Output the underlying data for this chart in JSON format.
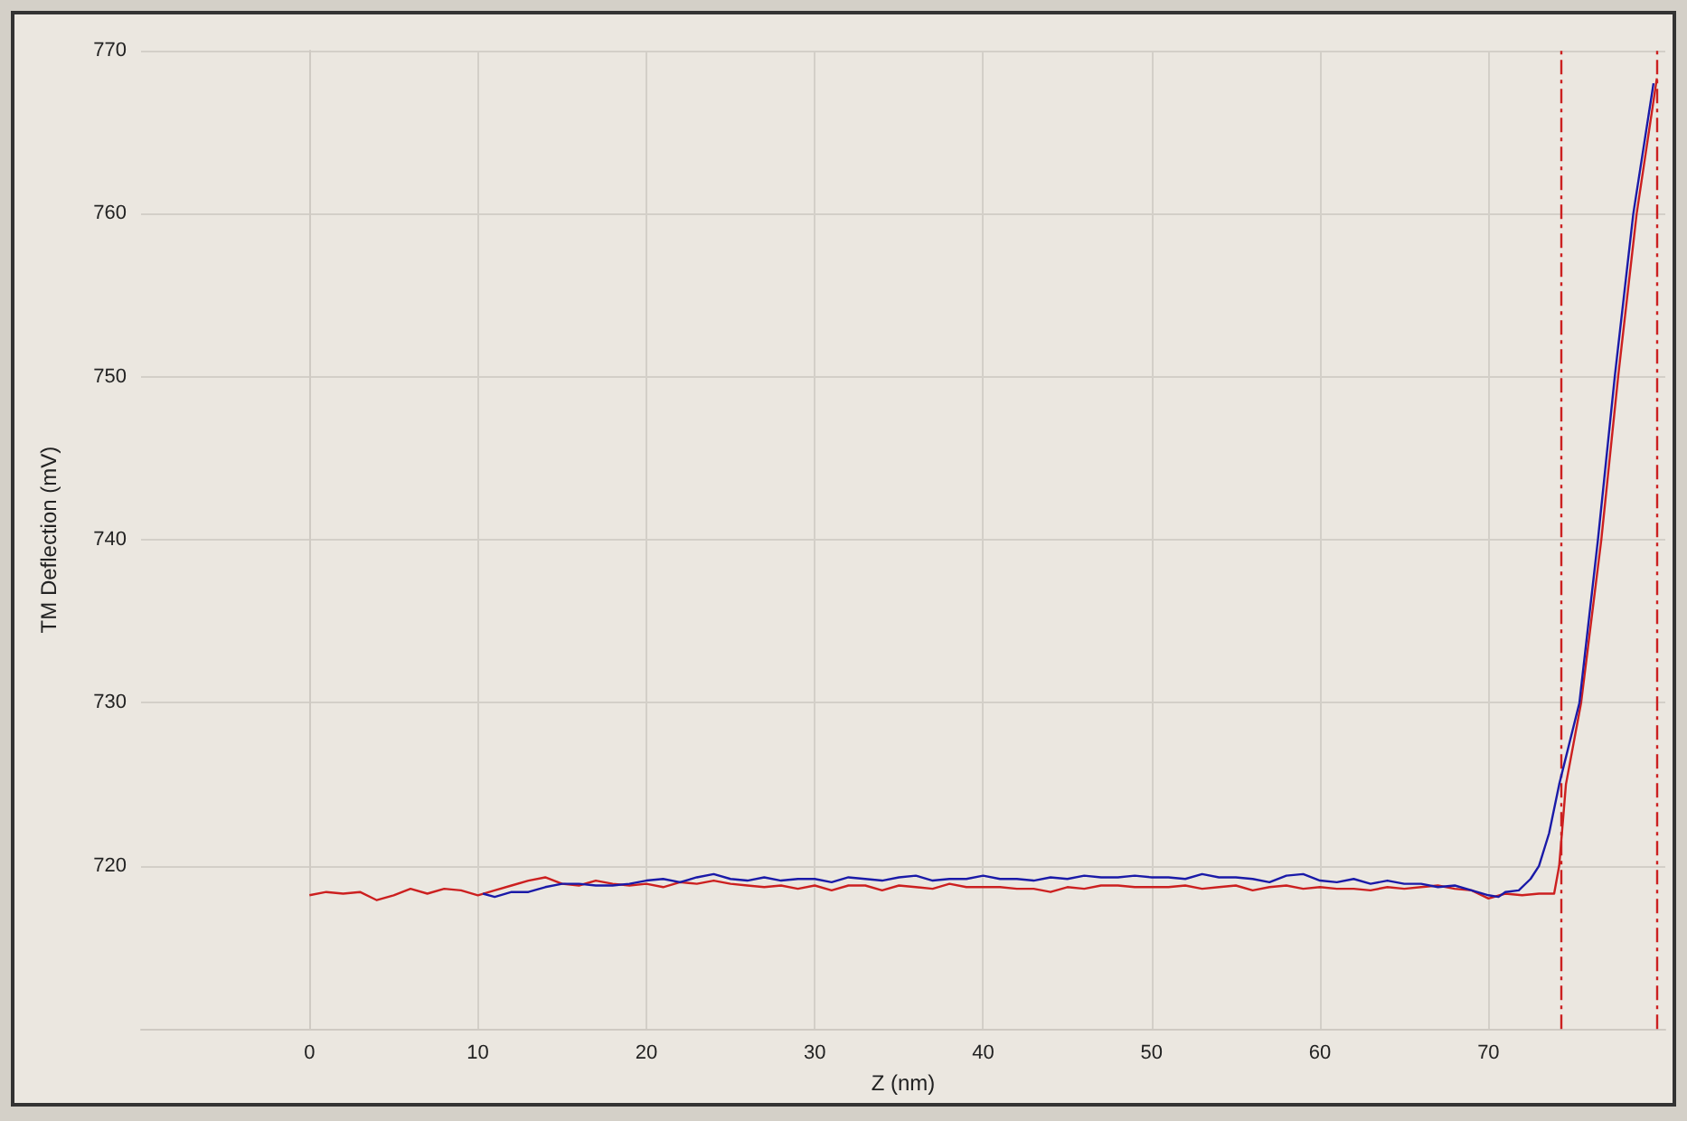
{
  "chart_data": {
    "type": "line",
    "xlabel": "Z (nm)",
    "ylabel": "TM Deflection (mV)",
    "xlim": [
      -10,
      80.5
    ],
    "xticks": [
      0,
      10,
      20,
      30,
      40,
      50,
      60,
      70
    ],
    "ylim": [
      710,
      770
    ],
    "yticks": [
      720,
      730,
      740,
      750,
      760,
      770
    ],
    "grid": true,
    "marker": "none",
    "line_style": "solid",
    "series": [
      {
        "color": "#1a1aa8",
        "x": [
          10.3,
          11,
          12,
          13,
          14,
          15,
          16,
          17,
          18,
          19,
          20,
          21,
          22,
          23,
          24,
          25,
          26,
          27,
          28,
          29,
          30,
          31,
          32,
          33,
          34,
          35,
          36,
          37,
          38,
          39,
          40,
          41,
          42,
          43,
          44,
          45,
          46,
          47,
          48,
          49,
          50,
          51,
          52,
          53,
          54,
          55,
          56,
          57,
          58,
          59,
          60,
          61,
          62,
          63,
          64,
          65,
          66,
          67,
          68,
          69,
          70,
          70.6,
          71,
          71.8,
          72.5,
          73,
          73.6,
          74.2,
          74.8,
          75.4,
          76.5,
          77.5,
          78.6,
          79.8
        ],
        "values": [
          718.3,
          718.1,
          718.4,
          718.4,
          718.7,
          718.9,
          718.9,
          718.8,
          718.8,
          718.9,
          719.1,
          719.2,
          719.0,
          719.3,
          719.5,
          719.2,
          719.1,
          719.3,
          719.1,
          719.2,
          719.2,
          719.0,
          719.3,
          719.2,
          719.1,
          719.3,
          719.4,
          719.1,
          719.2,
          719.2,
          719.4,
          719.2,
          719.2,
          719.1,
          719.3,
          719.2,
          719.4,
          719.3,
          719.3,
          719.4,
          719.3,
          719.3,
          719.2,
          719.5,
          719.3,
          719.3,
          719.2,
          719.0,
          719.4,
          719.5,
          719.1,
          719.0,
          719.2,
          718.9,
          719.1,
          718.9,
          718.9,
          718.7,
          718.8,
          718.5,
          718.2,
          718.1,
          718.4,
          718.5,
          719.2,
          720.0,
          722.0,
          725.0,
          727.5,
          730.0,
          740.0,
          750.0,
          760.0,
          768.0
        ]
      },
      {
        "color": "#cc2020",
        "x": [
          0,
          1,
          2,
          3,
          4,
          5,
          6,
          7,
          8,
          9,
          10,
          11,
          12,
          13,
          14,
          15,
          16,
          17,
          18,
          19,
          20,
          21,
          22,
          23,
          24,
          25,
          26,
          27,
          28,
          29,
          30,
          31,
          32,
          33,
          34,
          35,
          36,
          37,
          38,
          39,
          40,
          41,
          42,
          43,
          44,
          45,
          46,
          47,
          48,
          49,
          50,
          51,
          52,
          53,
          54,
          55,
          56,
          57,
          58,
          59,
          60,
          61,
          62,
          63,
          64,
          65,
          66,
          67,
          68,
          69,
          70,
          71,
          72,
          73,
          73.9,
          74.2,
          74.6,
          75.5,
          76.7,
          77.7,
          78.8,
          80
        ],
        "values": [
          718.2,
          718.4,
          718.3,
          718.4,
          717.9,
          718.2,
          718.6,
          718.3,
          718.6,
          718.5,
          718.2,
          718.5,
          718.8,
          719.1,
          719.3,
          718.9,
          718.8,
          719.1,
          718.9,
          718.8,
          718.9,
          718.7,
          719.0,
          718.9,
          719.1,
          718.9,
          718.8,
          718.7,
          718.8,
          718.6,
          718.8,
          718.5,
          718.8,
          718.8,
          718.5,
          718.8,
          718.7,
          718.6,
          718.9,
          718.7,
          718.7,
          718.7,
          718.6,
          718.6,
          718.4,
          718.7,
          718.6,
          718.8,
          718.8,
          718.7,
          718.7,
          718.7,
          718.8,
          718.6,
          718.7,
          718.8,
          718.5,
          718.7,
          718.8,
          718.6,
          718.7,
          718.6,
          718.6,
          718.5,
          718.7,
          718.6,
          718.7,
          718.8,
          718.6,
          718.5,
          718.0,
          718.3,
          718.2,
          718.3,
          718.3,
          720.0,
          725.0,
          730.0,
          740.0,
          750.0,
          760.0,
          768.3
        ]
      }
    ],
    "ref_lines": [
      {
        "axis": "x",
        "value": 74.3,
        "color": "#cc2020",
        "line_style": "dashed"
      },
      {
        "axis": "x",
        "value": 80,
        "color": "#cc2020",
        "line_style": "dashed"
      }
    ]
  }
}
